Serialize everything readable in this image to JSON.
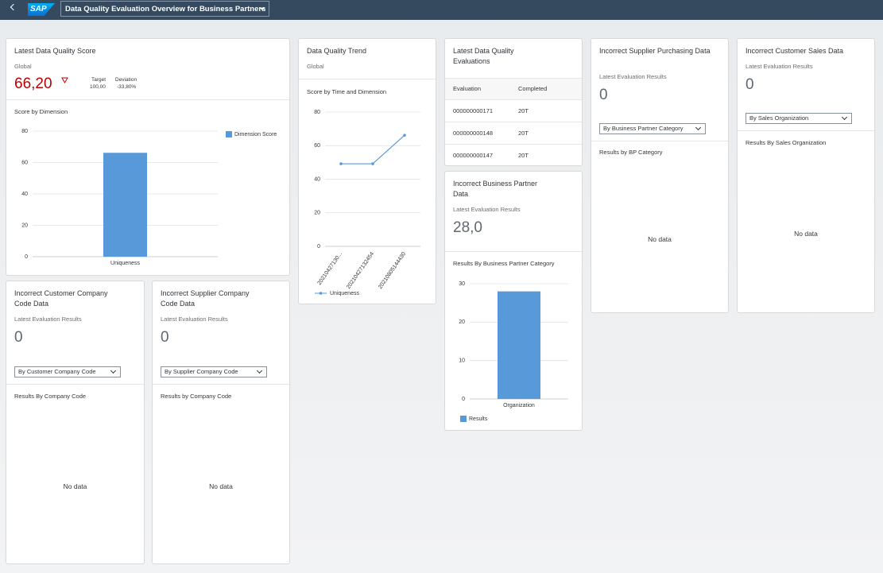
{
  "header": {
    "logo": "SAP",
    "title": "Data Quality Evaluation Overview for Business Partners"
  },
  "cards": [
    {
      "title": "Latest Data Quality Score",
      "subtitle": "Global",
      "kpi": "66,20",
      "target_label": "Target",
      "target": "100,00",
      "deviation_label": "Deviation",
      "deviation": "-33,80%",
      "chart": {
        "type": "bar",
        "title": "Score by Dimension",
        "categories": [
          "Uniqueness"
        ],
        "series": [
          {
            "name": "Dimension Score",
            "color": "#5899da",
            "values": [
              66.2
            ]
          }
        ],
        "ylim": [
          0,
          80
        ],
        "yticks": [
          0,
          20,
          40,
          60,
          80
        ],
        "grid": true
      }
    },
    {
      "title": "Data Quality Trend",
      "subtitle": "Global",
      "chart": {
        "type": "line",
        "title": "Score by Time and Dimension",
        "categories": [
          "20210427130...",
          "20210427132454",
          "20210805144430"
        ],
        "series": [
          {
            "name": "Uniqueness",
            "color": "#5899da",
            "values": [
              49.2,
              49.2,
              66.2
            ]
          }
        ],
        "ylim": [
          0,
          80
        ],
        "yticks": [
          0,
          20,
          40,
          60,
          80
        ],
        "grid": true
      }
    },
    {
      "title": "Latest Data Quality Evaluations",
      "table": {
        "columns": [
          "Evaluation",
          "Completed"
        ],
        "rows": [
          [
            "000000000171",
            "20T"
          ],
          [
            "000000000148",
            "20T"
          ],
          [
            "000000000147",
            "20T"
          ]
        ]
      }
    },
    {
      "title": "Incorrect Business Partner Data",
      "subtitle": "Latest Evaluation Results",
      "kpi": "28,0",
      "chart": {
        "type": "bar",
        "title": "Results By Business Partner Category",
        "categories": [
          "Organization"
        ],
        "series": [
          {
            "name": "Results",
            "color": "#5899da",
            "values": [
              28
            ]
          }
        ],
        "ylim": [
          0,
          30
        ],
        "yticks": [
          0,
          10,
          20,
          30
        ],
        "grid": true
      }
    },
    {
      "title": "Incorrect Supplier Purchasing Data",
      "subtitle": "Latest Evaluation Results",
      "kpi": "0",
      "dropdown": "By Business Partner Category",
      "section": "Results by BP Category",
      "no_data": "No data"
    },
    {
      "title": "Incorrect Customer Sales Data",
      "subtitle": "Latest Evaluation Results",
      "kpi": "0",
      "dropdown": "By Sales Organization",
      "section": "Results By Sales Organization",
      "no_data": "No data"
    },
    {
      "title": "Incorrect Customer Company Code Data",
      "subtitle": "Latest Evaluation Results",
      "kpi": "0",
      "dropdown": "By Customer Company Code",
      "section": "Results By Company Code",
      "no_data": "No data"
    },
    {
      "title": "Incorrect Supplier Company Code Data",
      "subtitle": "Latest Evaluation Results",
      "kpi": "0",
      "dropdown": "By Supplier Company Code",
      "section": "Results by Company Code",
      "no_data": "No data"
    }
  ]
}
